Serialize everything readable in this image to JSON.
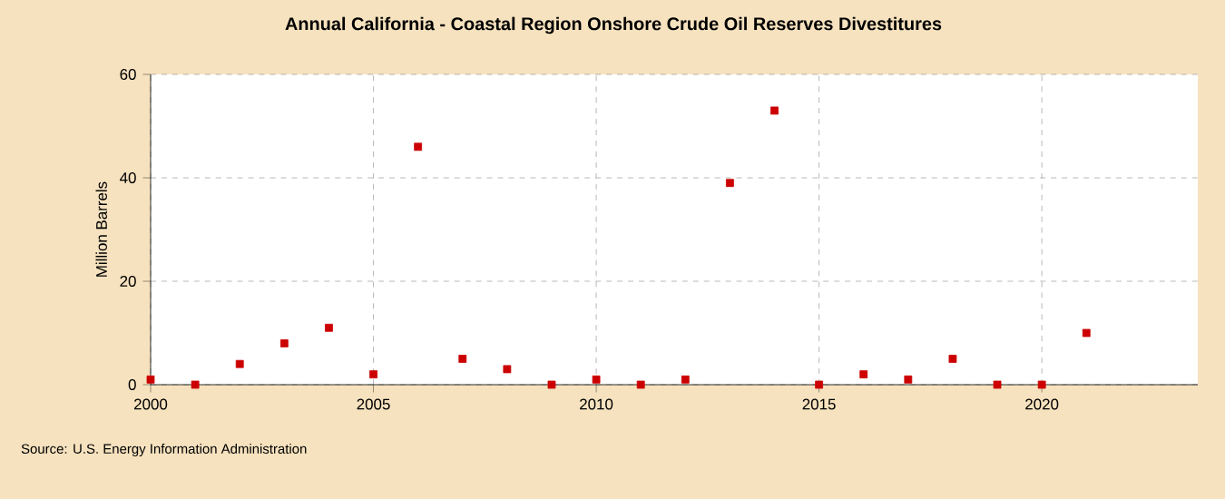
{
  "chart_data": {
    "type": "scatter",
    "title": "Annual California - Coastal Region Onshore Crude Oil Reserves Divestitures",
    "ylabel": "Million Barrels",
    "x": [
      2000,
      2001,
      2002,
      2003,
      2004,
      2005,
      2006,
      2007,
      2008,
      2009,
      2010,
      2011,
      2012,
      2013,
      2014,
      2015,
      2016,
      2017,
      2018,
      2019,
      2020,
      2021
    ],
    "values": [
      1,
      0,
      4,
      8,
      11,
      2,
      46,
      5,
      3,
      0,
      1,
      0,
      1,
      39,
      53,
      0,
      2,
      1,
      5,
      0,
      0,
      10
    ],
    "color": "#cc0000",
    "marker": "square",
    "grid": true,
    "xlim": [
      2000,
      2023.5
    ],
    "ylim": [
      0,
      60
    ],
    "xticks": [
      2000,
      2005,
      2010,
      2015,
      2020
    ],
    "yticks": [
      0,
      20,
      40,
      60
    ],
    "annotations": [
      "Source: U.S. Energy Information Administration"
    ]
  }
}
